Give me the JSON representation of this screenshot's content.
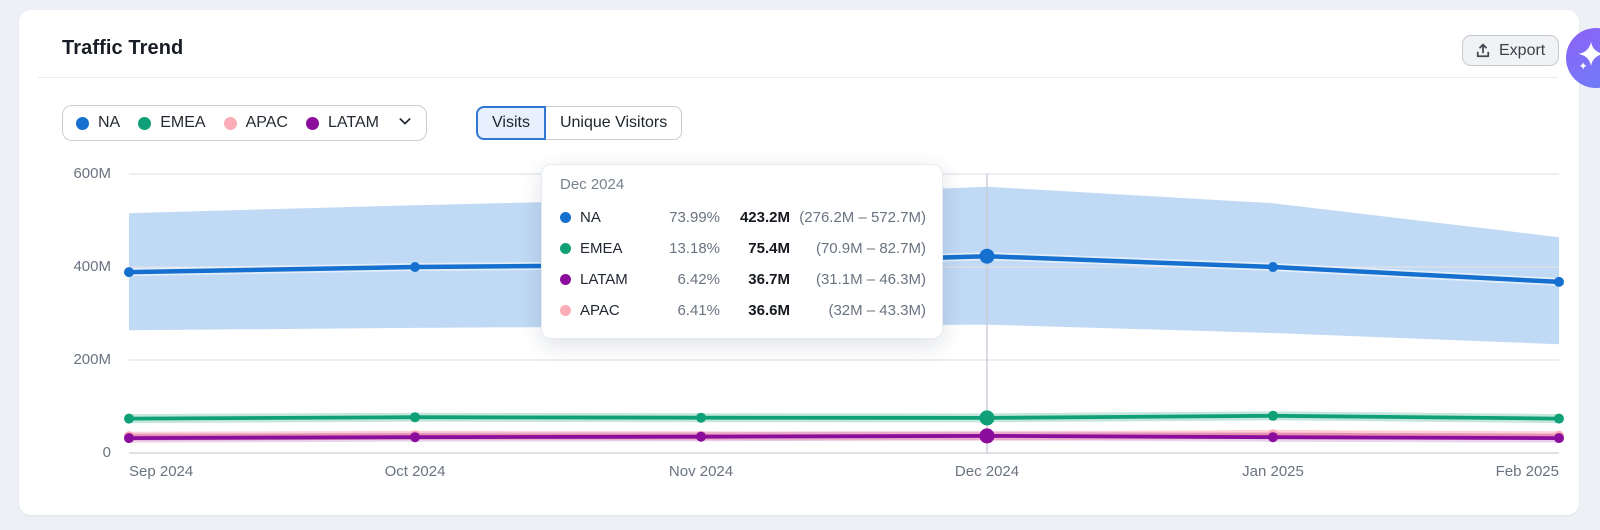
{
  "header": {
    "title": "Traffic Trend",
    "export_label": "Export"
  },
  "ai_button": {
    "name": "ai-assistant",
    "color_start": "#8a63f6",
    "color_end": "#6f7ef8"
  },
  "legend": {
    "items": [
      {
        "label": "NA",
        "color": "#1670cf"
      },
      {
        "label": "EMEA",
        "color": "#10a078"
      },
      {
        "label": "APAC",
        "color": "#fbadb7"
      },
      {
        "label": "LATAM",
        "color": "#8b0d9c"
      }
    ]
  },
  "toggle": {
    "options": [
      "Visits",
      "Unique Visitors"
    ],
    "selected_index": 0
  },
  "tooltip": {
    "title": "Dec 2024",
    "rows": [
      {
        "label": "NA",
        "color": "#1670cf",
        "percent": "73.99%",
        "value": "423.2M",
        "range": "(276.2M – 572.7M)"
      },
      {
        "label": "EMEA",
        "color": "#10a078",
        "percent": "13.18%",
        "value": "75.4M",
        "range": "(70.9M – 82.7M)"
      },
      {
        "label": "LATAM",
        "color": "#8b0d9c",
        "percent": "6.42%",
        "value": "36.7M",
        "range": "(31.1M – 46.3M)"
      },
      {
        "label": "APAC",
        "color": "#fbadb7",
        "percent": "6.41%",
        "value": "36.6M",
        "range": "(32M – 43.3M)"
      }
    ]
  },
  "chart_data": {
    "type": "line",
    "x": [
      "Sep 2024",
      "Oct 2024",
      "Nov 2024",
      "Dec 2024",
      "Jan 2025",
      "Feb 2025"
    ],
    "y_ticks": [
      {
        "label": "600M",
        "value": 600
      },
      {
        "label": "400M",
        "value": 400
      },
      {
        "label": "200M",
        "value": 200
      },
      {
        "label": "0",
        "value": 0
      }
    ],
    "ylim": [
      0,
      600
    ],
    "unit": "M visits",
    "highlight_x": "Dec 2024",
    "highlight_index": 3,
    "grid": true,
    "series": [
      {
        "name": "NA",
        "color": "#1670cf",
        "values": [
          389,
          400,
          405,
          423.2,
          400,
          368
        ],
        "band_low": [
          264,
          269,
          273,
          276.2,
          258,
          234
        ],
        "band_high": [
          516,
          533,
          547,
          572.7,
          537,
          464
        ],
        "band_color": "#bdd7f3"
      },
      {
        "name": "EMEA",
        "color": "#10a078",
        "values": [
          74,
          77,
          76,
          75.4,
          80,
          74
        ]
      },
      {
        "name": "APAC",
        "color": "#fbadb7",
        "values": [
          36,
          38,
          37,
          36.6,
          40,
          37
        ]
      },
      {
        "name": "LATAM",
        "color": "#8b0d9c",
        "values": [
          32,
          34,
          35,
          36.7,
          34,
          32
        ]
      }
    ]
  }
}
